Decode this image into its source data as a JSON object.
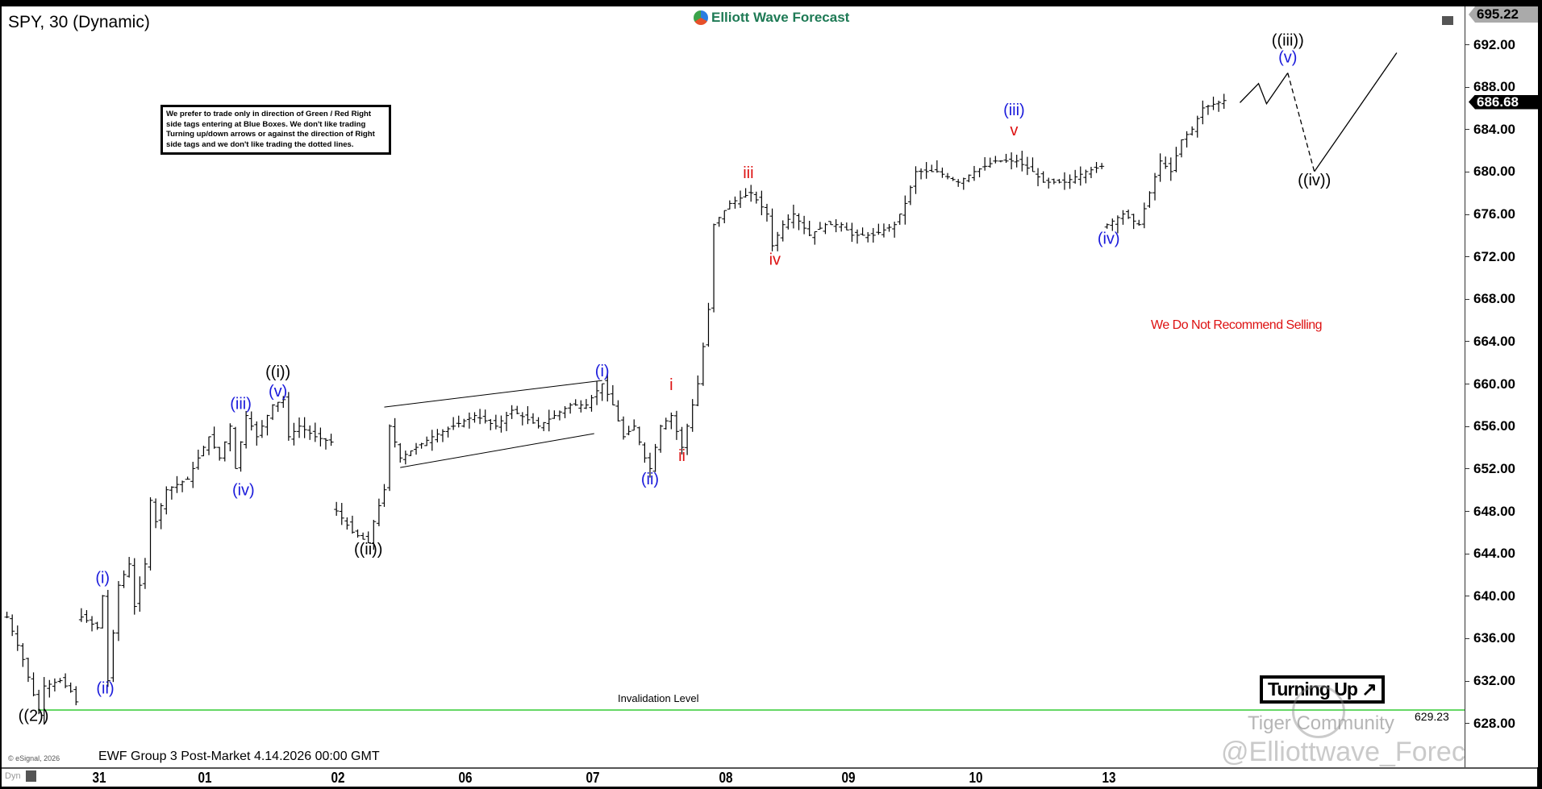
{
  "header": {
    "title": "SPY, 30 (Dynamic)",
    "logo_text": "Elliott Wave Forecast"
  },
  "note": "We prefer to trade only in direction of Green / Red Right side tags entering at Blue Boxes. We don't like trading Turning up/down arrows or against the direction of Right side tags and we don't like trading the dotted lines.",
  "footer": {
    "copyright": "© eSignal, 2026",
    "caption": "EWF Group 3 Post-Market 4.14.2026 00:00 GMT",
    "dyn": "Dyn"
  },
  "badge": {
    "label": "Turning Up",
    "arrow": "↗"
  },
  "watermarks": {
    "community": "Tiger Community",
    "handle": "@Elliottwave_Forecast"
  },
  "colors": {
    "blue": "#1a1adb",
    "red": "#d11",
    "green": "#3c3",
    "bars": "#000"
  },
  "chart_data": {
    "type": "ohlc",
    "symbol": "SPY",
    "interval": "30",
    "ylim": [
      627,
      695.5
    ],
    "y_ticks": [
      "692.00",
      "688.00",
      "684.00",
      "680.00",
      "676.00",
      "672.00",
      "668.00",
      "664.00",
      "660.00",
      "656.00",
      "652.00",
      "648.00",
      "644.00",
      "640.00",
      "636.00",
      "632.00",
      "628.00"
    ],
    "x_ticks": [
      {
        "label": "31",
        "bar": 18
      },
      {
        "label": "01",
        "bar": 38
      },
      {
        "label": "02",
        "bar": 63
      },
      {
        "label": "06",
        "bar": 87
      },
      {
        "label": "07",
        "bar": 111
      },
      {
        "label": "08",
        "bar": 136
      },
      {
        "label": "09",
        "bar": 159
      },
      {
        "label": "10",
        "bar": 183
      },
      {
        "label": "13",
        "bar": 208
      }
    ],
    "high_marker": "695.22",
    "last_price": "686.68",
    "invalidation": {
      "label": "Invalidation Level",
      "value": 629.23,
      "value_label": "629.23"
    },
    "sell_note": "We Do Not Recommend Selling",
    "segments": [
      [
        [
          1,
          638
        ],
        [
          4,
          634
        ],
        [
          7,
          629
        ],
        [
          8,
          631.5
        ],
        [
          11,
          632
        ],
        [
          13,
          631
        ],
        [
          14,
          630
        ]
      ],
      [
        [
          15,
          638
        ],
        [
          18,
          637
        ],
        [
          19,
          640
        ],
        [
          20,
          632
        ],
        [
          22,
          641
        ],
        [
          24,
          643
        ],
        [
          25,
          639
        ],
        [
          27,
          643
        ],
        [
          28,
          649
        ],
        [
          29,
          647
        ],
        [
          31,
          650
        ],
        [
          35,
          651
        ],
        [
          39,
          655
        ],
        [
          41,
          653
        ],
        [
          43,
          656
        ],
        [
          44,
          652
        ],
        [
          46,
          657
        ],
        [
          48,
          655
        ],
        [
          51,
          658
        ],
        [
          53,
          658.5
        ],
        [
          54,
          655
        ],
        [
          56,
          656
        ],
        [
          59,
          655
        ],
        [
          62,
          654.5
        ]
      ],
      [
        [
          63,
          648
        ],
        [
          66,
          646
        ],
        [
          69,
          645
        ],
        [
          70,
          647
        ],
        [
          72,
          650
        ],
        [
          73,
          656
        ],
        [
          75,
          653
        ],
        [
          81,
          655
        ],
        [
          89,
          657
        ],
        [
          93,
          656
        ],
        [
          96,
          657.5
        ],
        [
          101,
          656
        ],
        [
          107,
          658
        ],
        [
          110,
          658
        ],
        [
          113,
          660
        ],
        [
          115,
          658
        ],
        [
          117,
          655
        ],
        [
          119,
          656
        ],
        [
          121,
          653
        ],
        [
          122,
          652
        ],
        [
          124,
          656
        ],
        [
          126,
          657
        ],
        [
          128,
          654
        ],
        [
          130,
          658
        ],
        [
          131,
          660
        ],
        [
          133,
          667
        ],
        [
          134,
          675
        ],
        [
          137,
          677
        ],
        [
          141,
          678
        ],
        [
          144,
          676
        ],
        [
          145,
          673
        ],
        [
          147,
          675
        ],
        [
          149,
          676
        ],
        [
          152,
          674
        ],
        [
          155,
          675
        ],
        [
          158,
          675
        ],
        [
          160,
          674
        ],
        [
          164,
          674
        ],
        [
          168,
          675
        ],
        [
          170,
          677
        ],
        [
          172,
          680
        ],
        [
          176,
          680
        ],
        [
          180,
          679
        ],
        [
          183,
          680
        ],
        [
          187,
          681
        ],
        [
          191,
          681
        ],
        [
          194,
          680
        ],
        [
          196,
          679
        ],
        [
          200,
          679
        ],
        [
          204,
          680
        ],
        [
          207,
          680.5
        ]
      ],
      [
        [
          208,
          675
        ],
        [
          211,
          676
        ],
        [
          214,
          675
        ],
        [
          216,
          678
        ],
        [
          218,
          681
        ],
        [
          220,
          680
        ],
        [
          222,
          683
        ],
        [
          224,
          684
        ],
        [
          226,
          686
        ],
        [
          230,
          686.7
        ]
      ]
    ],
    "wave_labels": [
      {
        "text": "((2))",
        "color": "black",
        "bar": 6,
        "price": 628.2
      },
      {
        "text": "(i)",
        "color": "blue",
        "bar": 19,
        "price": 641.2
      },
      {
        "text": "(ii)",
        "color": "blue",
        "bar": 19.5,
        "price": 630.8
      },
      {
        "text": "(iii)",
        "color": "blue",
        "bar": 45,
        "price": 657.6
      },
      {
        "text": "(iv)",
        "color": "blue",
        "bar": 45.5,
        "price": 649.5
      },
      {
        "text": "(v)",
        "color": "blue",
        "bar": 52,
        "price": 658.8
      },
      {
        "text": "((i))",
        "color": "black",
        "bar": 52,
        "price": 660.6
      },
      {
        "text": "((ii))",
        "color": "black",
        "bar": 69,
        "price": 643.9
      },
      {
        "text": "(i)",
        "color": "blue",
        "bar": 113,
        "price": 660.7
      },
      {
        "text": "(ii)",
        "color": "blue",
        "bar": 122,
        "price": 650.5
      },
      {
        "text": "i",
        "color": "red",
        "bar": 126,
        "price": 659.4
      },
      {
        "text": "ii",
        "color": "red",
        "bar": 128,
        "price": 652.7
      },
      {
        "text": "iii",
        "color": "red",
        "bar": 140.5,
        "price": 679.4
      },
      {
        "text": "iv",
        "color": "red",
        "bar": 145.5,
        "price": 671.2
      },
      {
        "text": "v",
        "color": "red",
        "bar": 190.5,
        "price": 683.4
      },
      {
        "text": "(iii)",
        "color": "blue",
        "bar": 190.5,
        "price": 685.3
      },
      {
        "text": "(iv)",
        "color": "blue",
        "bar": 208.3,
        "price": 673.2
      },
      {
        "text": "(v)",
        "color": "blue",
        "bar": 242,
        "price": 690.3
      },
      {
        "text": "((iii))",
        "color": "black",
        "bar": 242,
        "price": 691.9
      },
      {
        "text": "((iv))",
        "color": "black",
        "bar": 247,
        "price": 678.7
      }
    ],
    "projection": [
      {
        "style": "solid",
        "points": [
          [
            233,
            686.5
          ],
          [
            236.5,
            688.3
          ],
          [
            238,
            686.4
          ],
          [
            242,
            689.3
          ]
        ]
      },
      {
        "style": "dashed",
        "points": [
          [
            242,
            689.3
          ],
          [
            247,
            680
          ]
        ]
      },
      {
        "style": "solid",
        "points": [
          [
            247,
            680
          ],
          [
            262.5,
            691.2
          ]
        ]
      }
    ],
    "channel": [
      {
        "points": [
          [
            72,
            657.8
          ],
          [
            113,
            660.3
          ]
        ]
      },
      {
        "points": [
          [
            75,
            652.1
          ],
          [
            111.5,
            655.3
          ]
        ]
      }
    ]
  }
}
